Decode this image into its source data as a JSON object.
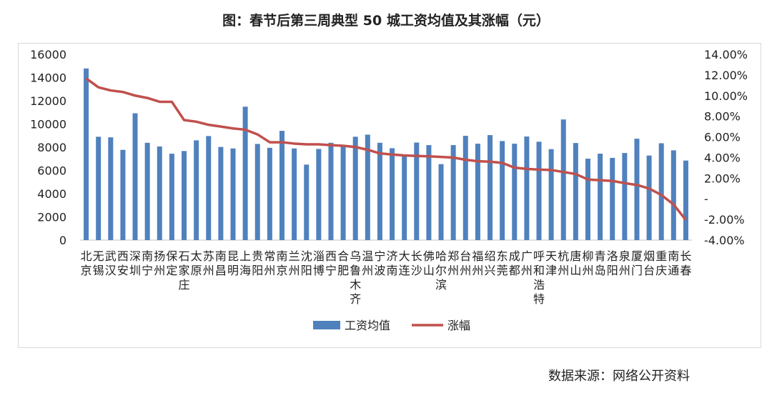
{
  "chart_data": {
    "type": "bar+line",
    "title": "图：春节后第三周典型 50 城工资均值及其涨幅（元）",
    "categories": [
      "北京",
      "无锡",
      "武汉",
      "西安",
      "深圳",
      "南宁",
      "扬州",
      "保定",
      "石家庄",
      "太原",
      "苏州",
      "南昌",
      "昆明",
      "上海",
      "贵阳",
      "常州",
      "南京",
      "兰州",
      "沈阳",
      "淄博",
      "西宁",
      "合肥",
      "乌鲁木齐",
      "温州",
      "宁波",
      "济南",
      "大连",
      "长沙",
      "佛山",
      "哈尔滨",
      "郑州",
      "台州",
      "福州",
      "绍兴",
      "东莞",
      "成都",
      "广州",
      "呼和浩特",
      "天津",
      "杭州",
      "唐山",
      "柳州",
      "青岛",
      "洛阳",
      "泉州",
      "厦门",
      "烟台",
      "重庆",
      "南通",
      "长春"
    ],
    "series": [
      {
        "name": "工资均值",
        "type": "bar",
        "axis": "left",
        "color": "#4f81bd",
        "values": [
          14780,
          8900,
          8850,
          7770,
          10920,
          8380,
          8060,
          7440,
          7670,
          8590,
          8960,
          8020,
          7890,
          11490,
          8280,
          7950,
          9410,
          7890,
          6500,
          7850,
          8380,
          8100,
          8900,
          9080,
          8380,
          7910,
          7250,
          8400,
          8180,
          6540,
          8180,
          8980,
          8300,
          9040,
          8530,
          8300,
          8920,
          8470,
          7830,
          10390,
          8360,
          7010,
          7440,
          7080,
          7500,
          8730,
          7280,
          8340,
          7730,
          6850
        ]
      },
      {
        "name": "涨幅",
        "type": "line",
        "axis": "right",
        "color": "#c0504d",
        "values": [
          11.66,
          10.8,
          10.5,
          10.35,
          10.0,
          9.77,
          9.4,
          9.4,
          7.63,
          7.47,
          7.17,
          7.0,
          6.82,
          6.7,
          6.24,
          5.48,
          5.48,
          5.35,
          5.28,
          5.28,
          5.2,
          5.14,
          5.02,
          4.75,
          4.4,
          4.29,
          4.2,
          4.15,
          4.12,
          4.06,
          4.0,
          3.78,
          3.64,
          3.6,
          3.48,
          3.02,
          2.9,
          2.83,
          2.79,
          2.6,
          2.4,
          1.87,
          1.8,
          1.73,
          1.52,
          1.34,
          1.0,
          0.37,
          -0.55,
          -2.05
        ]
      }
    ],
    "ylim_left": [
      0,
      16000
    ],
    "yticks_left": [
      "0",
      "2000",
      "4000",
      "6000",
      "8000",
      "10000",
      "12000",
      "14000",
      "16000"
    ],
    "ylim_right": [
      -4,
      14
    ],
    "yticks_right": [
      "-4.00%",
      "-2.00%",
      "-",
      "2.00%",
      "4.00%",
      "6.00%",
      "8.00%",
      "10.00%",
      "12.00%",
      "14.00%"
    ],
    "grid": false,
    "legend_position": "bottom"
  },
  "source": "数据来源：网络公开资料"
}
